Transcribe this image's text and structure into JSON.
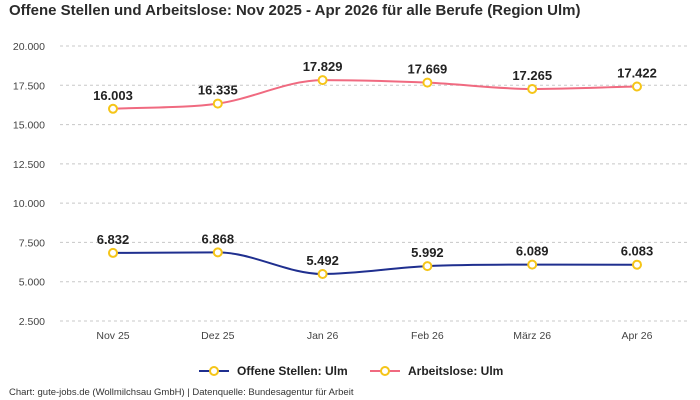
{
  "chart_data": {
    "type": "line",
    "title": "Offene Stellen und Arbeitslose: Nov 2025 - Apr 2026 für alle Berufe (Region Ulm)",
    "categories": [
      "Nov 25",
      "Dez 25",
      "Jan 26",
      "Feb 26",
      "März 26",
      "Apr 26"
    ],
    "series": [
      {
        "name": "Offene Stellen: Ulm",
        "values": [
          6832,
          6868,
          5492,
          5992,
          6089,
          6083
        ],
        "labels": [
          "6.832",
          "6.868",
          "5.492",
          "5.992",
          "6.089",
          "6.083"
        ],
        "color": "#1f2f8f"
      },
      {
        "name": "Arbeitslose: Ulm",
        "values": [
          16003,
          16335,
          17829,
          17669,
          17265,
          17422
        ],
        "labels": [
          "16.003",
          "16.335",
          "17.829",
          "17.669",
          "17.265",
          "17.422"
        ],
        "color": "#f06a80"
      }
    ],
    "ylim": [
      2500,
      20000
    ],
    "yticks": [
      {
        "value": 2500,
        "label": "2.500"
      },
      {
        "value": 5000,
        "label": "5.000"
      },
      {
        "value": 7500,
        "label": "7.500"
      },
      {
        "value": 10000,
        "label": "10.000"
      },
      {
        "value": 12500,
        "label": "12.500"
      },
      {
        "value": 15000,
        "label": "15.000"
      },
      {
        "value": 17500,
        "label": "17.500"
      },
      {
        "value": 20000,
        "label": "20.000"
      }
    ],
    "grid": true,
    "marker_color": "#f5c518",
    "legend_position": "bottom"
  },
  "footer": "Chart: gute-jobs.de (Wollmilchsau GmbH) | Datenquelle: Bundesagentur für Arbeit"
}
